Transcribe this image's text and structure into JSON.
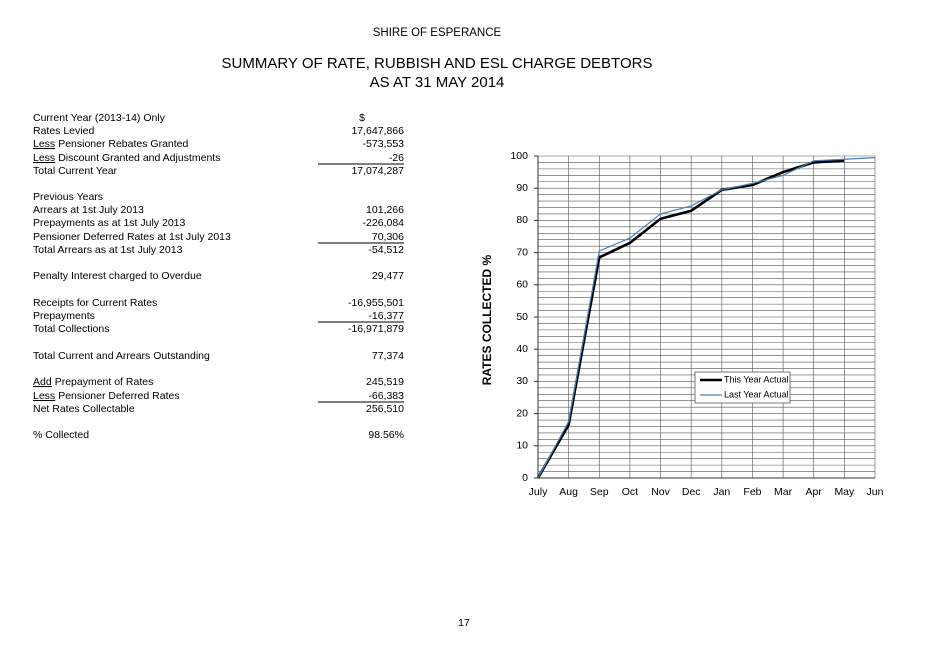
{
  "header": {
    "organisation": "SHIRE OF ESPERANCE",
    "title": "SUMMARY OF RATE, RUBBISH AND ESL CHARGE DEBTORS",
    "subtitle": "AS AT 31 MAY 2014"
  },
  "table": {
    "rows": [
      {
        "label": "Current Year (2013-14) Only",
        "value": "$"
      },
      {
        "label": "Rates Levied",
        "value": "17,647,866"
      },
      {
        "prefix": "Less",
        "label": "Pensioner Rebates Granted",
        "value": "-573,553"
      },
      {
        "prefix": "Less",
        "label": "Discount Granted and Adjustments",
        "value": "-26"
      },
      {
        "label": "Total Current Year",
        "value": "17,074,287"
      },
      {
        "label": "Previous Years"
      },
      {
        "label": "Arrears at 1st July 2013",
        "value": "101,266"
      },
      {
        "label": "Prepayments as at 1st July 2013",
        "value": "-226,084"
      },
      {
        "label": "Pensioner Deferred Rates at 1st July 2013",
        "value": "70,306"
      },
      {
        "label": "Total Arrears as at 1st July 2013",
        "value": "-54,512"
      },
      {
        "label": "Penalty Interest charged to Overdue",
        "value": "29,477"
      },
      {
        "label": "Receipts for Current Rates",
        "value": "-16,955,501"
      },
      {
        "label": "Prepayments",
        "value": "-16,377"
      },
      {
        "label": "Total Collections",
        "value": "-16,971,879"
      },
      {
        "label": "Total Current and Arrears Outstanding",
        "value": "77,374"
      },
      {
        "prefix": "Add",
        "label": "Prepayment of Rates",
        "value": "245,519"
      },
      {
        "prefix": "Less",
        "label": "Pensioner Deferred Rates",
        "value": "-66,383"
      },
      {
        "label": "Net Rates Collectable",
        "value": "256,510"
      },
      {
        "label": "% Collected",
        "value": "98.56%"
      }
    ]
  },
  "chart_data": {
    "type": "line",
    "y_label": "RATES COLLECTED %",
    "categories": [
      "July",
      "Aug",
      "Sep",
      "Oct",
      "Nov",
      "Dec",
      "Jan",
      "Feb",
      "Mar",
      "Apr",
      "May",
      "Jun"
    ],
    "series": [
      {
        "name": "This Year Actual",
        "color": "#000000",
        "values": [
          0,
          16.5,
          68.5,
          73,
          80.5,
          83,
          89.5,
          91,
          95,
          98,
          98.56,
          null
        ]
      },
      {
        "name": "Last Year Actual",
        "color": "#4a7ebb",
        "values": [
          0,
          17.5,
          70.5,
          74.5,
          82,
          84.5,
          89.5,
          91.5,
          94,
          98.5,
          99,
          99.5
        ]
      }
    ],
    "ylim": [
      0,
      100
    ],
    "yticks": [
      0,
      10,
      20,
      30,
      40,
      50,
      60,
      70,
      80,
      90,
      100
    ],
    "yminorticks": [
      2,
      4,
      6,
      8,
      12,
      14,
      16,
      18,
      22,
      24,
      26,
      28,
      32,
      34,
      36,
      38,
      42,
      44,
      46,
      48,
      52,
      54,
      56,
      58,
      62,
      64,
      66,
      68,
      72,
      74,
      76,
      78,
      82,
      84,
      86,
      88,
      92,
      94,
      96,
      98
    ],
    "grid": true,
    "legend": "right"
  },
  "page_number": "17"
}
